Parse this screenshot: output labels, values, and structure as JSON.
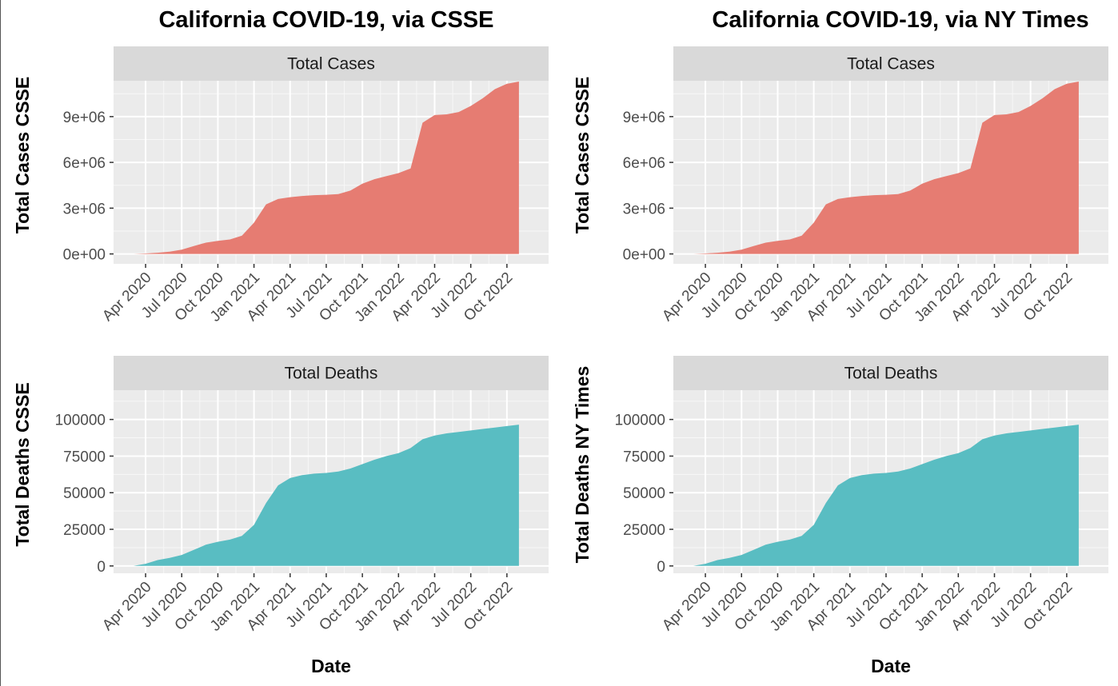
{
  "chart_data": [
    {
      "type": "area",
      "panel": "top-left",
      "title": "California COVID-19, via CSSE",
      "facet": "Total Cases",
      "xlabel": "",
      "ylabel": "Total Cases CSSE",
      "x_tick_labels": [
        "Apr 2020",
        "Jul 2020",
        "Oct 2020",
        "Jan 2021",
        "Apr 2021",
        "Jul 2021",
        "Oct 2021",
        "Jan 2022",
        "Apr 2022",
        "Jul 2022",
        "Oct 2022"
      ],
      "y_ticks": [
        0,
        3000000,
        6000000,
        9000000
      ],
      "y_tick_labels": [
        "0e+00",
        "3e+06",
        "6e+06",
        "9e+06"
      ],
      "ylim": [
        -650000,
        11350000
      ],
      "fill": "#E67C72",
      "x_months": [
        0,
        1,
        2,
        3,
        4,
        5,
        6,
        7,
        8,
        9,
        10,
        11,
        12,
        13,
        14,
        15,
        16,
        17,
        18,
        19,
        20,
        21,
        22,
        23,
        24,
        25,
        26,
        27,
        28,
        29,
        30,
        31,
        32
      ],
      "values": [
        0,
        30000,
        80000,
        150000,
        280000,
        520000,
        740000,
        860000,
        950000,
        1200000,
        2050000,
        3250000,
        3600000,
        3720000,
        3800000,
        3850000,
        3880000,
        3920000,
        4150000,
        4600000,
        4900000,
        5100000,
        5300000,
        5600000,
        8600000,
        9100000,
        9150000,
        9300000,
        9700000,
        10200000,
        10800000,
        11150000,
        11300000
      ],
      "grid": true
    },
    {
      "type": "area",
      "panel": "top-right",
      "title": "California COVID-19, via NY Times",
      "facet": "Total Cases",
      "xlabel": "",
      "ylabel": "Total Cases CSSE",
      "x_tick_labels": [
        "Apr 2020",
        "Jul 2020",
        "Oct 2020",
        "Jan 2021",
        "Apr 2021",
        "Jul 2021",
        "Oct 2021",
        "Jan 2022",
        "Apr 2022",
        "Jul 2022",
        "Oct 2022"
      ],
      "y_ticks": [
        0,
        3000000,
        6000000,
        9000000
      ],
      "y_tick_labels": [
        "0e+00",
        "3e+06",
        "6e+06",
        "9e+06"
      ],
      "ylim": [
        -650000,
        11350000
      ],
      "fill": "#E67C72",
      "x_months": [
        0,
        1,
        2,
        3,
        4,
        5,
        6,
        7,
        8,
        9,
        10,
        11,
        12,
        13,
        14,
        15,
        16,
        17,
        18,
        19,
        20,
        21,
        22,
        23,
        24,
        25,
        26,
        27,
        28,
        29,
        30,
        31,
        32
      ],
      "values": [
        0,
        30000,
        80000,
        150000,
        280000,
        520000,
        740000,
        860000,
        950000,
        1200000,
        2050000,
        3250000,
        3600000,
        3720000,
        3800000,
        3850000,
        3880000,
        3920000,
        4150000,
        4600000,
        4900000,
        5100000,
        5300000,
        5600000,
        8600000,
        9100000,
        9150000,
        9300000,
        9700000,
        10200000,
        10800000,
        11150000,
        11300000
      ],
      "grid": true
    },
    {
      "type": "area",
      "panel": "bottom-left",
      "facet": "Total Deaths",
      "xlabel": "Date",
      "ylabel": "Total Deaths CSSE",
      "x_tick_labels": [
        "Apr 2020",
        "Jul 2020",
        "Oct 2020",
        "Jan 2021",
        "Apr 2021",
        "Jul 2021",
        "Oct 2021",
        "Jan 2022",
        "Apr 2022",
        "Jul 2022",
        "Oct 2022"
      ],
      "y_ticks": [
        0,
        25000,
        50000,
        75000,
        100000
      ],
      "y_tick_labels": [
        "0",
        "25000",
        "50000",
        "75000",
        "100000"
      ],
      "ylim": [
        -5000,
        120000
      ],
      "fill": "#59BDC2",
      "x_months": [
        0,
        1,
        2,
        3,
        4,
        5,
        6,
        7,
        8,
        9,
        10,
        11,
        12,
        13,
        14,
        15,
        16,
        17,
        18,
        19,
        20,
        21,
        22,
        23,
        24,
        25,
        26,
        27,
        28,
        29,
        30,
        31,
        32
      ],
      "values": [
        0,
        1500,
        4000,
        5500,
        7500,
        11000,
        14500,
        16500,
        18000,
        20500,
        28000,
        43000,
        55000,
        60000,
        62000,
        63000,
        63500,
        64500,
        66500,
        69500,
        72500,
        75000,
        77000,
        80500,
        86500,
        89000,
        90500,
        91500,
        92500,
        93500,
        94500,
        95500,
        96500
      ],
      "grid": true
    },
    {
      "type": "area",
      "panel": "bottom-right",
      "facet": "Total Deaths",
      "xlabel": "Date",
      "ylabel": "Total Deaths NY Times",
      "x_tick_labels": [
        "Apr 2020",
        "Jul 2020",
        "Oct 2020",
        "Jan 2021",
        "Apr 2021",
        "Jul 2021",
        "Oct 2021",
        "Jan 2022",
        "Apr 2022",
        "Jul 2022",
        "Oct 2022"
      ],
      "y_ticks": [
        0,
        25000,
        50000,
        75000,
        100000
      ],
      "y_tick_labels": [
        "0",
        "25000",
        "50000",
        "75000",
        "100000"
      ],
      "ylim": [
        -5000,
        120000
      ],
      "fill": "#59BDC2",
      "x_months": [
        0,
        1,
        2,
        3,
        4,
        5,
        6,
        7,
        8,
        9,
        10,
        11,
        12,
        13,
        14,
        15,
        16,
        17,
        18,
        19,
        20,
        21,
        22,
        23,
        24,
        25,
        26,
        27,
        28,
        29,
        30,
        31,
        32
      ],
      "values": [
        0,
        1500,
        4000,
        5500,
        7500,
        11000,
        14500,
        16500,
        18000,
        20500,
        28000,
        43000,
        55000,
        60000,
        62000,
        63000,
        63500,
        64500,
        66500,
        69500,
        72500,
        75000,
        77000,
        80500,
        86500,
        89000,
        90500,
        91500,
        92500,
        93500,
        94500,
        95500,
        96500
      ],
      "grid": true
    }
  ]
}
